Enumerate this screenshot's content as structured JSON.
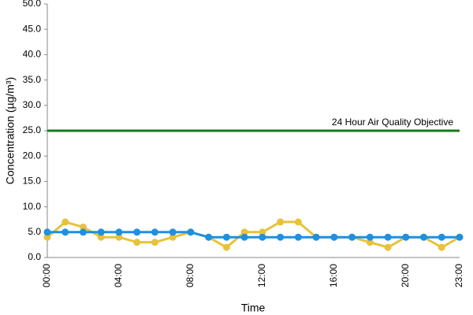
{
  "chart_data": {
    "type": "line",
    "y_label": "Concentration (µg/m³)",
    "x_label": "Time",
    "categories": [
      "00:00",
      null,
      null,
      null,
      "04:00",
      null,
      null,
      null,
      "08:00",
      null,
      null,
      null,
      "12:00",
      null,
      null,
      null,
      "16:00",
      null,
      null,
      null,
      "20:00",
      null,
      null,
      "23:00"
    ],
    "series": [
      {
        "color": "#e8c23a",
        "values": [
          4,
          7,
          6,
          4,
          4,
          3,
          3,
          4,
          5,
          4,
          2,
          5,
          5,
          7,
          7,
          4,
          4,
          4,
          3,
          2,
          4,
          4,
          2,
          4
        ]
      },
      {
        "color": "#1e90e0",
        "values": [
          5,
          5,
          5,
          5,
          5,
          5,
          5,
          5,
          5,
          4,
          4,
          4,
          4,
          4,
          4,
          4,
          4,
          4,
          4,
          4,
          4,
          4,
          4,
          4
        ]
      }
    ],
    "reference_line": {
      "value": 25,
      "label": "24 Hour Air Quality Objective",
      "color": "#1a7a1a"
    },
    "ylim": [
      0,
      50
    ],
    "yticks": [
      {
        "value": 0,
        "label": "0.0"
      },
      {
        "value": 5,
        "label": "5.0"
      },
      {
        "value": 10,
        "label": "10.0"
      },
      {
        "value": 15,
        "label": "15.0"
      },
      {
        "value": 20,
        "label": "20.0"
      },
      {
        "value": 25,
        "label": "25.0"
      },
      {
        "value": 30,
        "label": "30.0"
      },
      {
        "value": 35,
        "label": "35.0"
      },
      {
        "value": 40,
        "label": "40.0"
      },
      {
        "value": 45,
        "label": "45.0"
      },
      {
        "value": 50,
        "label": "50.0"
      }
    ],
    "grid": false
  }
}
